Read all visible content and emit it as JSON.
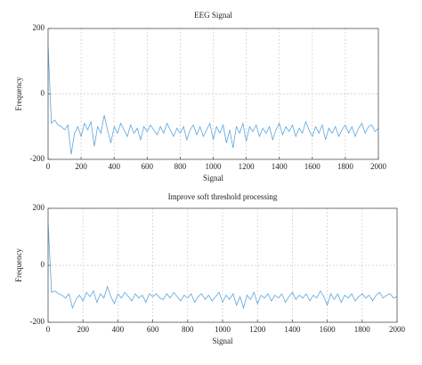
{
  "chart_data": [
    {
      "type": "line",
      "title": "EEG Signal",
      "xlabel": "Signal",
      "ylabel": "Frequency",
      "color": "#5aa6de",
      "grid": true,
      "xlim": [
        0,
        2000
      ],
      "ylim": [
        -200,
        200
      ],
      "xticks": [
        0,
        200,
        400,
        600,
        800,
        1000,
        1200,
        1400,
        1600,
        1800,
        2000
      ],
      "yticks": [
        -200,
        0,
        200
      ],
      "x": [
        0,
        20,
        40,
        60,
        80,
        100,
        120,
        140,
        160,
        180,
        200,
        220,
        240,
        260,
        280,
        300,
        320,
        340,
        360,
        380,
        400,
        420,
        440,
        460,
        480,
        500,
        520,
        540,
        560,
        580,
        600,
        620,
        640,
        660,
        680,
        700,
        720,
        740,
        760,
        780,
        800,
        820,
        840,
        860,
        880,
        900,
        920,
        940,
        960,
        980,
        1000,
        1020,
        1040,
        1060,
        1080,
        1100,
        1120,
        1140,
        1160,
        1180,
        1200,
        1220,
        1240,
        1260,
        1280,
        1300,
        1320,
        1340,
        1360,
        1380,
        1400,
        1420,
        1440,
        1460,
        1480,
        1500,
        1520,
        1540,
        1560,
        1580,
        1600,
        1620,
        1640,
        1660,
        1680,
        1700,
        1720,
        1740,
        1760,
        1780,
        1800,
        1820,
        1840,
        1860,
        1880,
        1900,
        1920,
        1940,
        1960,
        1980,
        2000
      ],
      "values": [
        150,
        -90,
        -80,
        -95,
        -100,
        -110,
        -95,
        -185,
        -120,
        -100,
        -130,
        -90,
        -110,
        -85,
        -160,
        -100,
        -120,
        -65,
        -110,
        -150,
        -100,
        -120,
        -90,
        -110,
        -130,
        -95,
        -120,
        -105,
        -140,
        -100,
        -115,
        -95,
        -110,
        -125,
        -100,
        -120,
        -90,
        -110,
        -130,
        -105,
        -120,
        -100,
        -140,
        -110,
        -95,
        -125,
        -100,
        -130,
        -110,
        -90,
        -140,
        -100,
        -120,
        -95,
        -150,
        -110,
        -165,
        -100,
        -120,
        -90,
        -145,
        -100,
        -115,
        -95,
        -130,
        -105,
        -120,
        -100,
        -140,
        -110,
        -90,
        -125,
        -100,
        -115,
        -95,
        -130,
        -105,
        -120,
        -85,
        -110,
        -130,
        -100,
        -120,
        -95,
        -140,
        -105,
        -120,
        -100,
        -130,
        -110,
        -95,
        -120,
        -100,
        -130,
        -105,
        -90,
        -120,
        -100,
        -95,
        -115,
        -105
      ]
    },
    {
      "type": "line",
      "title": "Improve soft threshold processing",
      "xlabel": "Signal",
      "ylabel": "Frequency",
      "color": "#5aa6de",
      "grid": true,
      "xlim": [
        0,
        2000
      ],
      "ylim": [
        -200,
        200
      ],
      "xticks": [
        0,
        200,
        400,
        600,
        800,
        1000,
        1200,
        1400,
        1600,
        1800,
        2000
      ],
      "yticks": [
        -200,
        0,
        200
      ],
      "x": [
        0,
        20,
        40,
        60,
        80,
        100,
        120,
        140,
        160,
        180,
        200,
        220,
        240,
        260,
        280,
        300,
        320,
        340,
        360,
        380,
        400,
        420,
        440,
        460,
        480,
        500,
        520,
        540,
        560,
        580,
        600,
        620,
        640,
        660,
        680,
        700,
        720,
        740,
        760,
        780,
        800,
        820,
        840,
        860,
        880,
        900,
        920,
        940,
        960,
        980,
        1000,
        1020,
        1040,
        1060,
        1080,
        1100,
        1120,
        1140,
        1160,
        1180,
        1200,
        1220,
        1240,
        1260,
        1280,
        1300,
        1320,
        1340,
        1360,
        1380,
        1400,
        1420,
        1440,
        1460,
        1480,
        1500,
        1520,
        1540,
        1560,
        1580,
        1600,
        1620,
        1640,
        1660,
        1680,
        1700,
        1720,
        1740,
        1760,
        1780,
        1800,
        1820,
        1840,
        1860,
        1880,
        1900,
        1920,
        1940,
        1960,
        1980,
        2000
      ],
      "values": [
        150,
        -95,
        -90,
        -100,
        -105,
        -115,
        -100,
        -150,
        -120,
        -105,
        -125,
        -95,
        -110,
        -90,
        -130,
        -100,
        -115,
        -75,
        -110,
        -135,
        -100,
        -115,
        -95,
        -110,
        -125,
        -100,
        -115,
        -105,
        -130,
        -100,
        -110,
        -100,
        -115,
        -120,
        -100,
        -115,
        -95,
        -110,
        -125,
        -105,
        -115,
        -100,
        -130,
        -110,
        -100,
        -120,
        -105,
        -125,
        -110,
        -95,
        -130,
        -105,
        -120,
        -100,
        -140,
        -110,
        -150,
        -105,
        -120,
        -95,
        -135,
        -105,
        -115,
        -100,
        -125,
        -105,
        -115,
        -100,
        -130,
        -110,
        -95,
        -120,
        -105,
        -115,
        -100,
        -125,
        -105,
        -115,
        -90,
        -110,
        -140,
        -100,
        -120,
        -100,
        -130,
        -105,
        -115,
        -100,
        -125,
        -110,
        -100,
        -115,
        -105,
        -125,
        -105,
        -95,
        -115,
        -105,
        -100,
        -115,
        -110
      ]
    }
  ]
}
